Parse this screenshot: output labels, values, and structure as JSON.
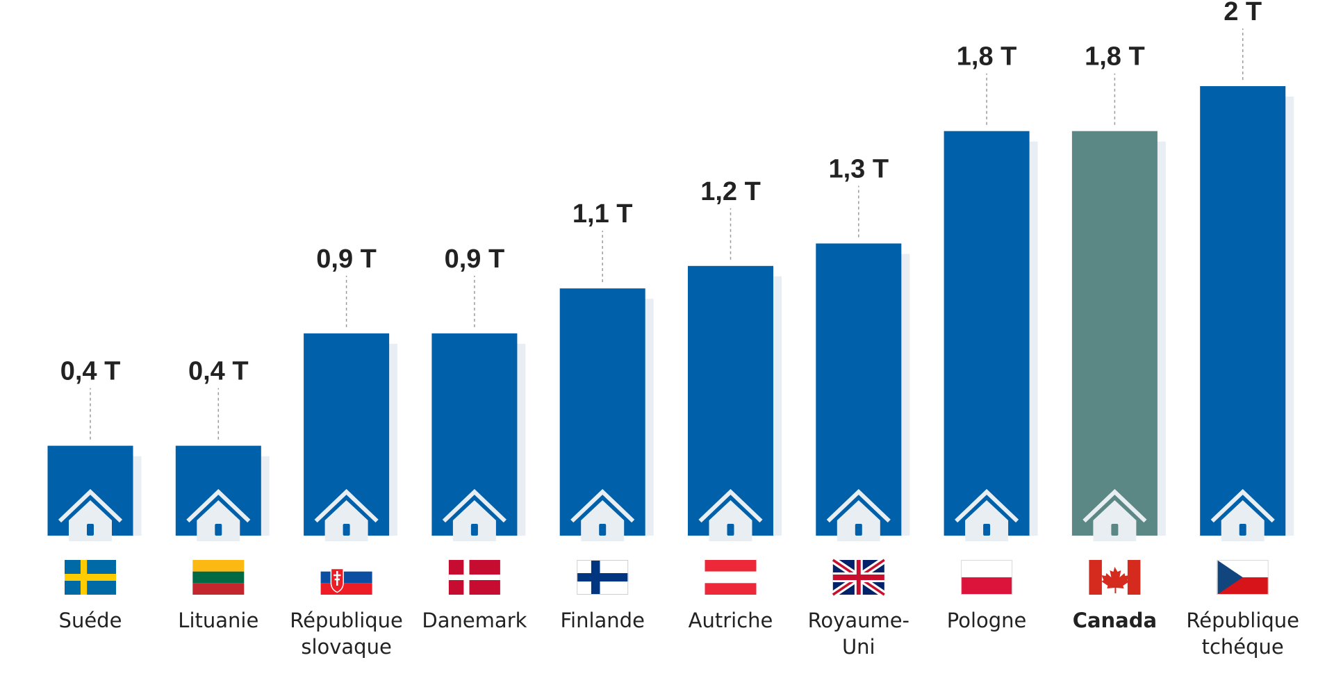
{
  "chart_data": {
    "type": "bar",
    "title": "",
    "xlabel": "",
    "ylabel": "",
    "ylim": [
      0,
      2
    ],
    "grid": false,
    "legend": "none",
    "highlight_category": "Canada",
    "colors": {
      "bar": "#0060A9",
      "highlight": "#5B8884",
      "shadow": "#E8EEF3",
      "house": "#E9EEF3",
      "text": "#222222"
    },
    "categories": [
      {
        "name": "Suéde",
        "lines": [
          "Suéde"
        ],
        "value": 0.4,
        "label": "0,4 T",
        "flag": "sweden-flag"
      },
      {
        "name": "Lituanie",
        "lines": [
          "Lituanie"
        ],
        "value": 0.4,
        "label": "0,4 T",
        "flag": "lithuania-flag"
      },
      {
        "name": "République slovaque",
        "lines": [
          "République",
          "slovaque"
        ],
        "value": 0.9,
        "label": "0,9 T",
        "flag": "slovakia-flag"
      },
      {
        "name": "Danemark",
        "lines": [
          "Danemark"
        ],
        "value": 0.9,
        "label": "0,9 T",
        "flag": "denmark-flag"
      },
      {
        "name": "Finlande",
        "lines": [
          "Finlande"
        ],
        "value": 1.1,
        "label": "1,1 T",
        "flag": "finland-flag"
      },
      {
        "name": "Autriche",
        "lines": [
          "Autriche"
        ],
        "value": 1.2,
        "label": "1,2 T",
        "flag": "austria-flag"
      },
      {
        "name": "Royaume-Uni",
        "lines": [
          "Royaume-",
          "Uni"
        ],
        "value": 1.3,
        "label": "1,3 T",
        "flag": "uk-flag"
      },
      {
        "name": "Pologne",
        "lines": [
          "Pologne"
        ],
        "value": 1.8,
        "label": "1,8 T",
        "flag": "poland-flag"
      },
      {
        "name": "Canada",
        "lines": [
          "Canada"
        ],
        "value": 1.8,
        "label": "1,8 T",
        "flag": "canada-flag"
      },
      {
        "name": "République tchéque",
        "lines": [
          "République",
          "tchéque"
        ],
        "value": 2.0,
        "label": "2 T",
        "flag": "czech-flag"
      }
    ]
  }
}
